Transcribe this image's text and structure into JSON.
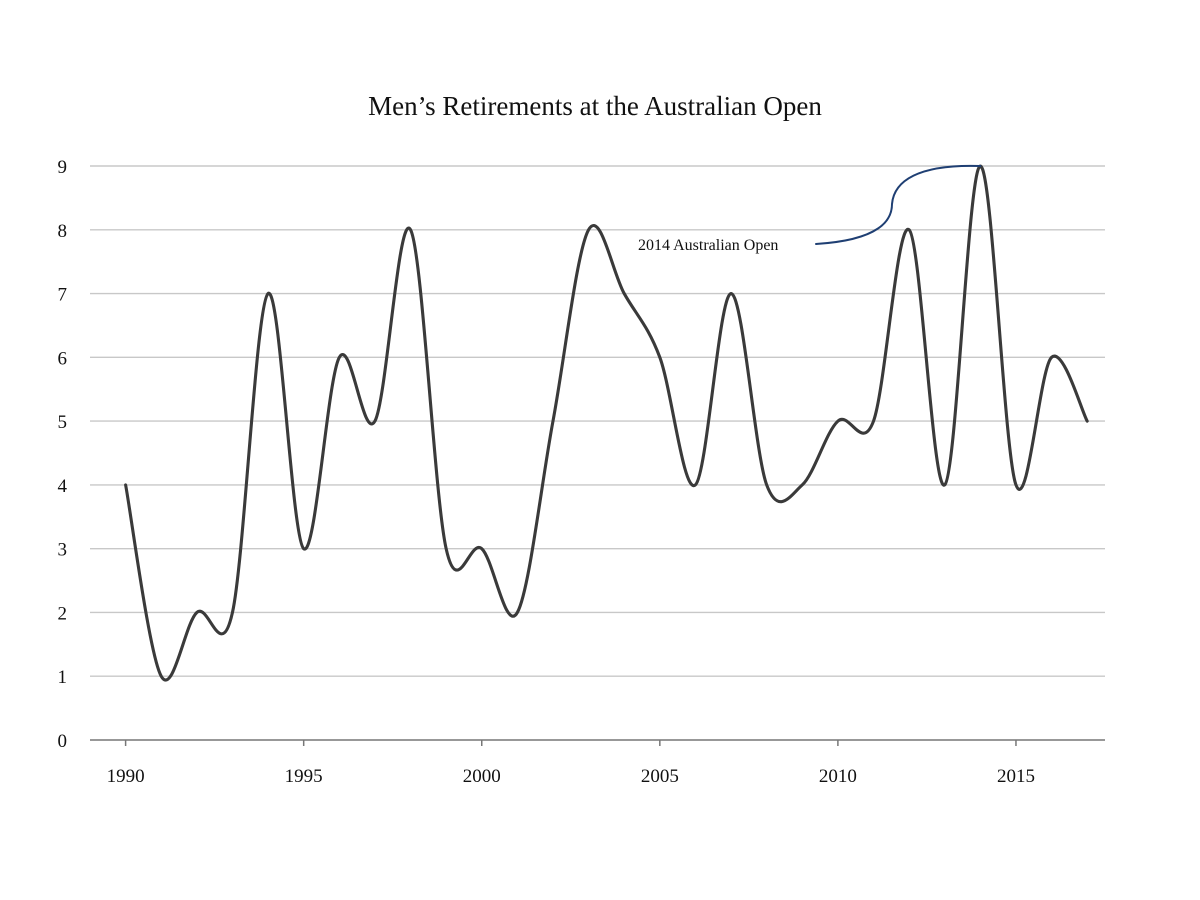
{
  "chart_data": {
    "type": "line",
    "title": "Men’s Retirements at the Australian Open",
    "xlabel": "",
    "ylabel": "",
    "x": [
      1990,
      1991,
      1992,
      1993,
      1994,
      1995,
      1996,
      1997,
      1998,
      1999,
      2000,
      2001,
      2002,
      2003,
      2004,
      2005,
      2006,
      2007,
      2008,
      2009,
      2010,
      2011,
      2012,
      2013,
      2014,
      2015,
      2016,
      2017
    ],
    "series": [
      {
        "values": [
          4,
          1,
          2,
          2,
          7,
          3,
          6,
          5,
          8,
          3,
          3,
          2,
          5,
          8,
          7,
          6,
          4,
          7,
          4,
          4,
          5,
          5,
          8,
          4,
          9,
          4,
          6,
          5
        ],
        "color": "#3a3a3a"
      }
    ],
    "xlim": [
      1989,
      2017.5
    ],
    "ylim": [
      0,
      9
    ],
    "x_ticks": [
      "1990",
      "1995",
      "2000",
      "2005",
      "2010",
      "2015"
    ],
    "y_ticks": [
      "0",
      "1",
      "2",
      "3",
      "4",
      "5",
      "6",
      "7",
      "8",
      "9"
    ],
    "grid": true,
    "legend": "none",
    "annotations": [
      {
        "text": "2014 Australian Open",
        "x": 2014,
        "y": 9,
        "color": "#1f3f73"
      }
    ]
  }
}
